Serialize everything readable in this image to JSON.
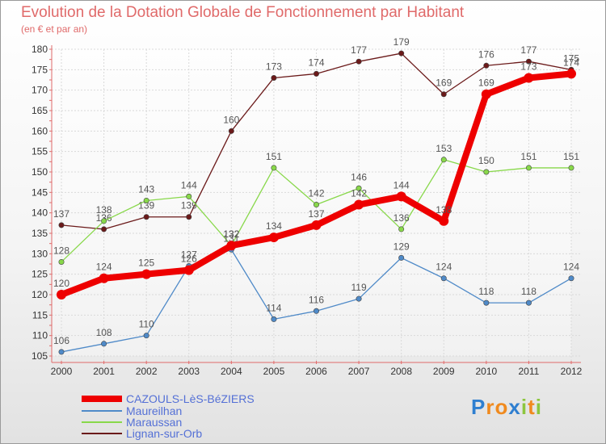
{
  "header": {
    "title": "Evolution de la Dotation Globale de Fonctionnement par Habitant",
    "subtitle": "(en € et par an)"
  },
  "chart_data": {
    "type": "line",
    "title": "Evolution de la Dotation Globale de Fonctionnement par Habitant",
    "subtitle": "(en € et par an)",
    "x": [
      2000,
      2001,
      2002,
      2003,
      2004,
      2005,
      2006,
      2007,
      2008,
      2009,
      2010,
      2011,
      2012
    ],
    "ylim": [
      105,
      180
    ],
    "yticks": [
      105,
      110,
      115,
      120,
      125,
      130,
      135,
      140,
      145,
      150,
      155,
      160,
      165,
      170,
      175,
      180
    ],
    "grid": true,
    "series": [
      {
        "name": "Lignan-sur-Orb",
        "color": "#6b1a1a",
        "width": 1.3,
        "values": [
          137,
          136,
          139,
          139,
          160,
          173,
          174,
          177,
          179,
          169,
          176,
          177,
          175
        ]
      },
      {
        "name": "Maraussan",
        "color": "#88d84a",
        "width": 1.3,
        "values": [
          128,
          138,
          143,
          144,
          132,
          151,
          142,
          146,
          136,
          153,
          150,
          151,
          151
        ]
      },
      {
        "name": "Maureilhan",
        "color": "#4f8ac8",
        "width": 1.3,
        "values": [
          106,
          108,
          110,
          127,
          131,
          114,
          116,
          119,
          129,
          124,
          118,
          118,
          124
        ]
      },
      {
        "name": "CAZOULS-LèS-BéZIERS",
        "color": "#ee0000",
        "width": 8,
        "values": [
          120,
          124,
          125,
          126,
          132,
          134,
          137,
          142,
          144,
          138,
          169,
          173,
          174
        ]
      }
    ]
  },
  "legend": {
    "items": [
      {
        "label": "CAZOULS-LèS-BéZIERS",
        "color": "#ee0000"
      },
      {
        "label": "Maureilhan",
        "color": "#4f8ac8"
      },
      {
        "label": "Maraussan",
        "color": "#88d84a"
      },
      {
        "label": "Lignan-sur-Orb",
        "color": "#6b1a1a"
      }
    ]
  },
  "logo": {
    "letters": [
      "P",
      "r",
      "o",
      "x",
      "i",
      "t",
      "i"
    ],
    "colors": [
      "#2f7fd0",
      "#f08a1e",
      "#f08a1e",
      "#2f7fd0",
      "#8cc63f",
      "#f08a1e",
      "#8cc63f"
    ]
  }
}
